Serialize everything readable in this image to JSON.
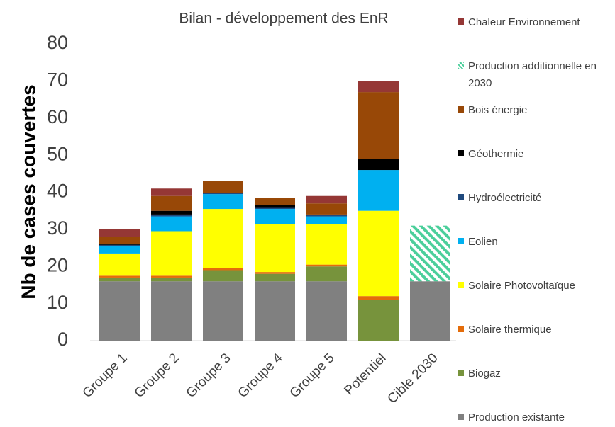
{
  "chart_data": {
    "type": "stacked_bar",
    "title": "Bilan - développement des EnR",
    "y_label": "Nb de cases couvertes",
    "categories": [
      "Groupe 1",
      "Groupe 2",
      "Groupe 3",
      "Groupe 4",
      "Groupe 5",
      "Potentiel",
      "Cible 2030"
    ],
    "series": [
      {
        "name": "Production existante",
        "color": "#808080",
        "values": [
          16,
          16,
          16,
          16,
          16,
          0,
          16
        ]
      },
      {
        "name": "Biogaz",
        "color": "#77933c",
        "values": [
          1,
          1,
          3,
          2,
          4,
          11,
          0
        ]
      },
      {
        "name": "Solaire thermique",
        "color": "#e46c0a",
        "values": [
          0.5,
          0.5,
          0.5,
          0.5,
          0.5,
          1,
          0
        ]
      },
      {
        "name": "Solaire Photovoltaïque",
        "color": "#ffff00",
        "values": [
          6,
          12,
          16,
          13,
          11,
          23,
          0
        ]
      },
      {
        "name": "Eolien",
        "color": "#00b0f0",
        "values": [
          2,
          4,
          4,
          4,
          2,
          11,
          0
        ]
      },
      {
        "name": "Hydroélectricité",
        "color": "#1f497d",
        "values": [
          0.3,
          0.5,
          0.3,
          0.3,
          0.5,
          0,
          0
        ]
      },
      {
        "name": "Géothermie",
        "color": "#000000",
        "values": [
          0.2,
          1,
          0,
          0.7,
          0,
          3,
          0
        ]
      },
      {
        "name": "Bois énergie",
        "color": "#984807",
        "values": [
          2,
          4,
          3.2,
          2,
          3,
          18,
          0
        ]
      },
      {
        "name": "Production additionnelle en 2030",
        "color": "#4bcf9b",
        "hatch": true,
        "values": [
          0,
          0,
          0,
          0,
          0,
          0,
          15
        ]
      },
      {
        "name": "Chaleur Environnement",
        "color": "#953735",
        "values": [
          2,
          2,
          0,
          0,
          2,
          3,
          0
        ]
      }
    ],
    "ylim": [
      0,
      80
    ],
    "yticks": [
      0,
      10,
      20,
      30,
      40,
      50,
      60,
      70,
      80
    ],
    "grid": false,
    "legend": "right"
  }
}
